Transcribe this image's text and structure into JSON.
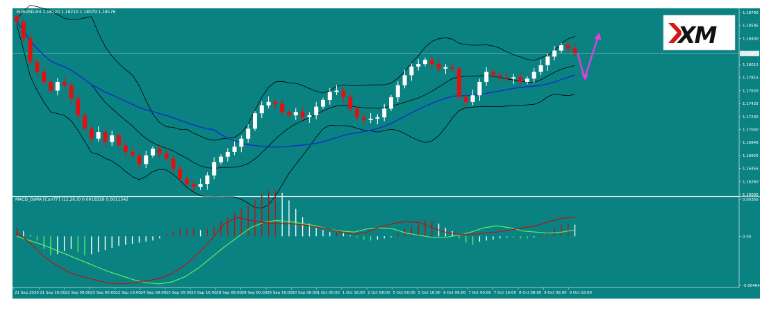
{
  "title_bar": {
    "symbol_line": "EURUSD,H4  1.18120 1.18210 1.18079 1.18176"
  },
  "indicator": {
    "label": "MACD_OsMA [CurrTF] (12,26,9) 0.0018329 0.0011542"
  },
  "logo": {
    "text": "XM"
  },
  "colors": {
    "background": "#0b8282",
    "bull": "#ffffff",
    "bear": "#e41010",
    "ma": "#1030c8",
    "bands": "#000000",
    "macd_signal": "#5cf05c",
    "macd_main": "#c01010",
    "arrow": "#e040e0"
  },
  "chart_data": [
    {
      "type": "candlestick",
      "symbol": "EURUSD",
      "timeframe": "H4",
      "ohlc_shown": {
        "open": 1.1812,
        "high": 1.1821,
        "low": 1.18079,
        "close": 1.18176
      },
      "ylim": [
        1.16065,
        1.1879
      ],
      "y_ticks": [
        "1.18790",
        "1.18595",
        "1.18400",
        "1.18176",
        "1.18010",
        "1.17815",
        "1.17620",
        "1.17425",
        "1.17230",
        "1.17040",
        "1.16845",
        "1.16650",
        "1.16455",
        "1.16260",
        "1.16065"
      ],
      "current_price": "1.18176",
      "x_ticks": [
        "21 Sep 2020",
        "21 Sep 16:00",
        "22 Sep 08:00",
        "23 Sep 00:00",
        "23 Sep 16:00",
        "24 Sep 08:00",
        "25 Sep 00:00",
        "25 Sep 16:00",
        "28 Sep 08:00",
        "29 Sep 00:00",
        "29 Sep 16:00",
        "30 Sep 08:00",
        "1 Oct 00:00",
        "1 Oct 16:00",
        "2 Oct 08:00",
        "5 Oct 00:00",
        "5 Oct 16:00",
        "6 Oct 08:00",
        "7 Oct 00:00",
        "7 Oct 16:00",
        "8 Oct 08:00",
        "9 Oct 00:00",
        "9 Oct 16:00"
      ],
      "closes": [
        1.1865,
        1.184,
        1.1805,
        1.179,
        1.1775,
        1.1762,
        1.1775,
        1.177,
        1.175,
        1.1725,
        1.1705,
        1.169,
        1.17,
        1.1685,
        1.1695,
        1.168,
        1.167,
        1.1665,
        1.1652,
        1.1665,
        1.1675,
        1.1668,
        1.166,
        1.1645,
        1.163,
        1.1622,
        1.1618,
        1.1622,
        1.1635,
        1.1655,
        1.1663,
        1.167,
        1.1678,
        1.169,
        1.1705,
        1.1728,
        1.174,
        1.1745,
        1.1742,
        1.173,
        1.1725,
        1.173,
        1.1722,
        1.1725,
        1.1738,
        1.1748,
        1.176,
        1.1762,
        1.1752,
        1.1735,
        1.1722,
        1.1718,
        1.172,
        1.1722,
        1.1735,
        1.1752,
        1.177,
        1.1785,
        1.1798,
        1.1802,
        1.1808,
        1.1802,
        1.1795,
        1.1797,
        1.1795,
        1.1752,
        1.1745,
        1.1755,
        1.1775,
        1.179,
        1.1785,
        1.1782,
        1.178,
        1.1782,
        1.1775,
        1.178,
        1.179,
        1.18,
        1.1813,
        1.1822,
        1.183,
        1.1825,
        1.1818
      ],
      "indicators": [
        "Moving Average",
        "Bollinger Bands"
      ],
      "projection": [
        "down",
        "up"
      ]
    },
    {
      "type": "macd_histogram",
      "label": "MACD_OsMA [CurrTF] (12,26,9)",
      "values_shown": [
        0.0018329,
        0.0011542
      ],
      "ylim": [
        -0.00464,
        0.0035
      ],
      "y_ticks": [
        "0.00350",
        "0.00",
        "-0.00464"
      ],
      "histogram": [
        0.0008,
        0.0005,
        0.0001,
        -0.0004,
        -0.0012,
        -0.0018,
        -0.0017,
        -0.0014,
        -0.0012,
        -0.0015,
        -0.0018,
        -0.0017,
        -0.0015,
        -0.0013,
        -0.0011,
        -0.0009,
        -0.0008,
        -0.0007,
        -0.0006,
        -0.0005,
        -0.0004,
        -0.0002,
        0.0002,
        0.0005,
        0.0007,
        0.0007,
        0.0008,
        0.0006,
        0.0007,
        0.001,
        0.0014,
        0.0018,
        0.0022,
        0.0026,
        0.003,
        0.0035,
        0.004,
        0.0043,
        0.0044,
        0.0041,
        0.0034,
        0.0026,
        0.0018,
        0.0012,
        0.0008,
        0.0006,
        0.0004,
        0.0004,
        0.0003,
        0.0001,
        -0.0001,
        -0.0003,
        -0.0004,
        -0.0003,
        -0.0002,
        -0.0001,
        0.0003,
        0.0007,
        0.0009,
        0.0012,
        0.0015,
        0.0015,
        0.0012,
        0.0008,
        0.0005,
        -0.0002,
        -0.0006,
        -0.0008,
        -0.0005,
        -0.0004,
        -0.0003,
        -0.0002,
        -0.0001,
        -0.0001,
        -0.0002,
        -0.0002,
        -0.0001,
        0.0001,
        0.0004,
        0.0008,
        0.0011,
        0.0012,
        0.0011
      ],
      "signal_line": [
        0.0,
        -0.0004,
        -0.0008,
        -0.0013,
        -0.0018,
        -0.0023,
        -0.0028,
        -0.0033,
        -0.0037,
        -0.0041,
        -0.0044,
        -0.0045,
        -0.0043,
        -0.0038,
        -0.003,
        -0.002,
        -0.001,
        -0.0001,
        0.0008,
        0.0013,
        0.0015,
        0.0014,
        0.0012,
        0.001,
        0.0007,
        0.0005,
        0.0004,
        0.0007,
        0.0008,
        0.0007,
        0.0003,
        0.0001,
        -0.0001,
        -0.0001,
        0.0001,
        0.0004,
        0.0008,
        0.001,
        0.0008,
        0.0005,
        0.0004,
        0.0003,
        0.0004,
        0.0006
      ],
      "main_line": [
        0.0004,
        -0.0006,
        -0.0018,
        -0.0027,
        -0.0034,
        -0.0038,
        -0.0041,
        -0.0044,
        -0.0045,
        -0.0044,
        -0.0042,
        -0.004,
        -0.0035,
        -0.0027,
        -0.0016,
        -0.0003,
        0.0012,
        0.0018,
        0.0015,
        0.0013,
        0.0012,
        0.0012,
        0.0011,
        0.0009,
        0.0007,
        0.0004,
        0.0002,
        0.0004,
        0.0009,
        0.0012,
        0.0014,
        0.0013,
        0.0008,
        0.0004,
        0.0002,
        0.0002,
        0.0003,
        0.0004,
        0.0006,
        0.0008,
        0.001,
        0.0014,
        0.0017,
        0.0018
      ]
    }
  ]
}
